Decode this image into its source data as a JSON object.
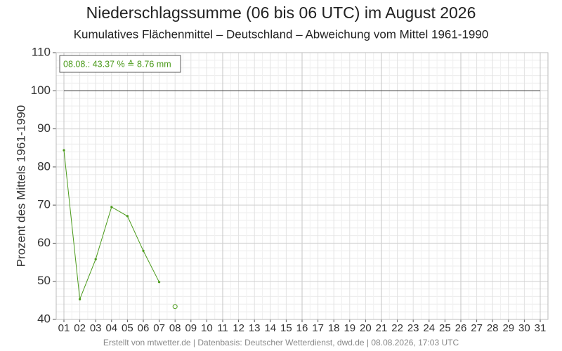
{
  "chart_data": {
    "type": "line",
    "title": "Niederschlagssumme (06 bis 06 UTC) im August 2026",
    "subtitle": "Kumulatives Flächenmittel – Deutschland – Abweichung vom Mittel 1961-1990",
    "y_label": "Prozent des Mittels 1961-1990",
    "annotation": "08.08.: 43.37 % ≙ 8.76 mm",
    "footer": "Erstellt von mtwetter.de | Datenbasis: Deutscher Wetterdienst, dwd.de | 08.08.2026, 17:03 UTC",
    "categories": [
      "01",
      "02",
      "03",
      "04",
      "05",
      "06",
      "07",
      "08",
      "09",
      "10",
      "11",
      "12",
      "13",
      "14",
      "15",
      "16",
      "17",
      "18",
      "19",
      "20",
      "21",
      "22",
      "23",
      "24",
      "25",
      "26",
      "27",
      "28",
      "29",
      "30",
      "31"
    ],
    "series": [
      {
        "color": "#4a9a1a",
        "values": [
          84.4,
          45.3,
          55.8,
          69.5,
          67.1,
          58.0,
          49.8,
          null,
          null,
          null,
          null,
          null,
          null,
          null,
          null,
          null,
          null,
          null,
          null,
          null,
          null,
          null,
          null,
          null,
          null,
          null,
          null,
          null,
          null,
          null,
          null
        ]
      }
    ],
    "current_point": {
      "index": 7,
      "value": 43.37,
      "color": "#4a9a1a"
    },
    "reference_line": 100,
    "ylim": [
      40,
      110
    ],
    "yticks": [
      40,
      50,
      60,
      70,
      80,
      90,
      100,
      110
    ],
    "yminor": [
      42,
      44,
      46,
      48,
      52,
      54,
      56,
      58,
      62,
      64,
      66,
      68,
      72,
      74,
      76,
      78,
      82,
      84,
      86,
      88,
      92,
      94,
      96,
      98,
      102,
      104,
      106,
      108
    ],
    "grid": true
  }
}
